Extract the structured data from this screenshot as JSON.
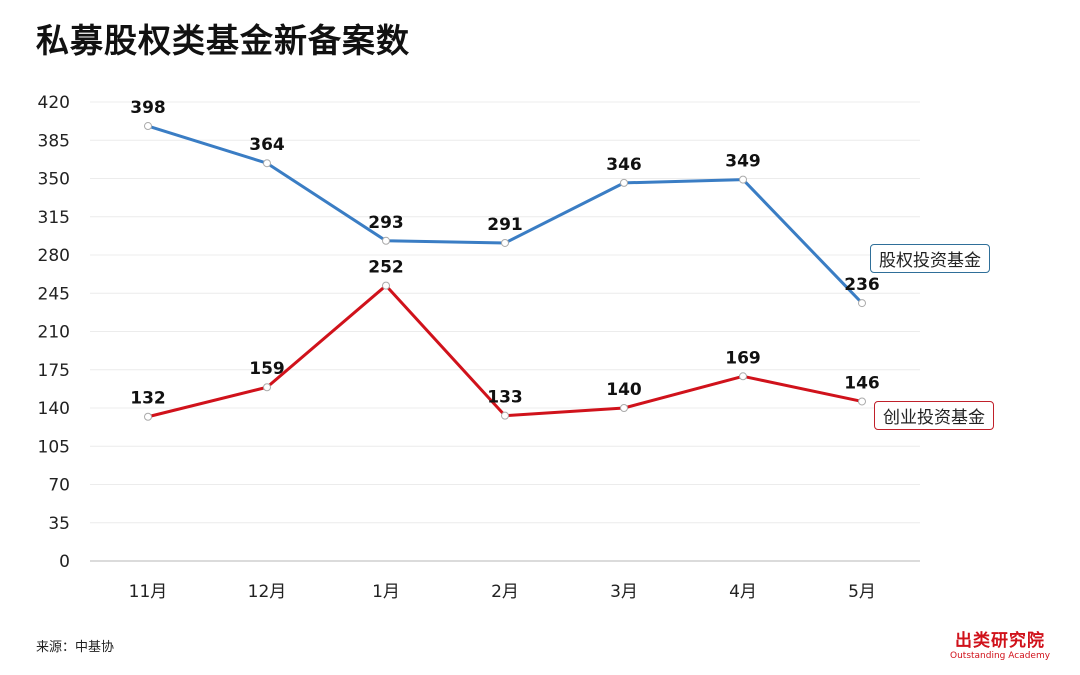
{
  "title": "私募股权类基金新备案数",
  "source": "来源：中基协",
  "brand": {
    "cn": "出类研究院",
    "en": "Outstanding Academy"
  },
  "chart_data": {
    "type": "line",
    "title": "私募股权类基金新备案数",
    "categories": [
      "11月",
      "12月",
      "1月",
      "2月",
      "3月",
      "4月",
      "5月"
    ],
    "ylim": [
      0,
      420
    ],
    "yticks": [
      0,
      35,
      70,
      105,
      140,
      175,
      210,
      245,
      280,
      315,
      350,
      385,
      420
    ],
    "grid": true,
    "series": [
      {
        "name": "股权投资基金",
        "color": "#3a7dc4",
        "values": [
          398,
          364,
          293,
          291,
          346,
          349,
          236
        ]
      },
      {
        "name": "创业投资基金",
        "color": "#d0121b",
        "values": [
          132,
          159,
          252,
          133,
          140,
          169,
          146
        ]
      }
    ],
    "legend": "right, at line ends"
  }
}
